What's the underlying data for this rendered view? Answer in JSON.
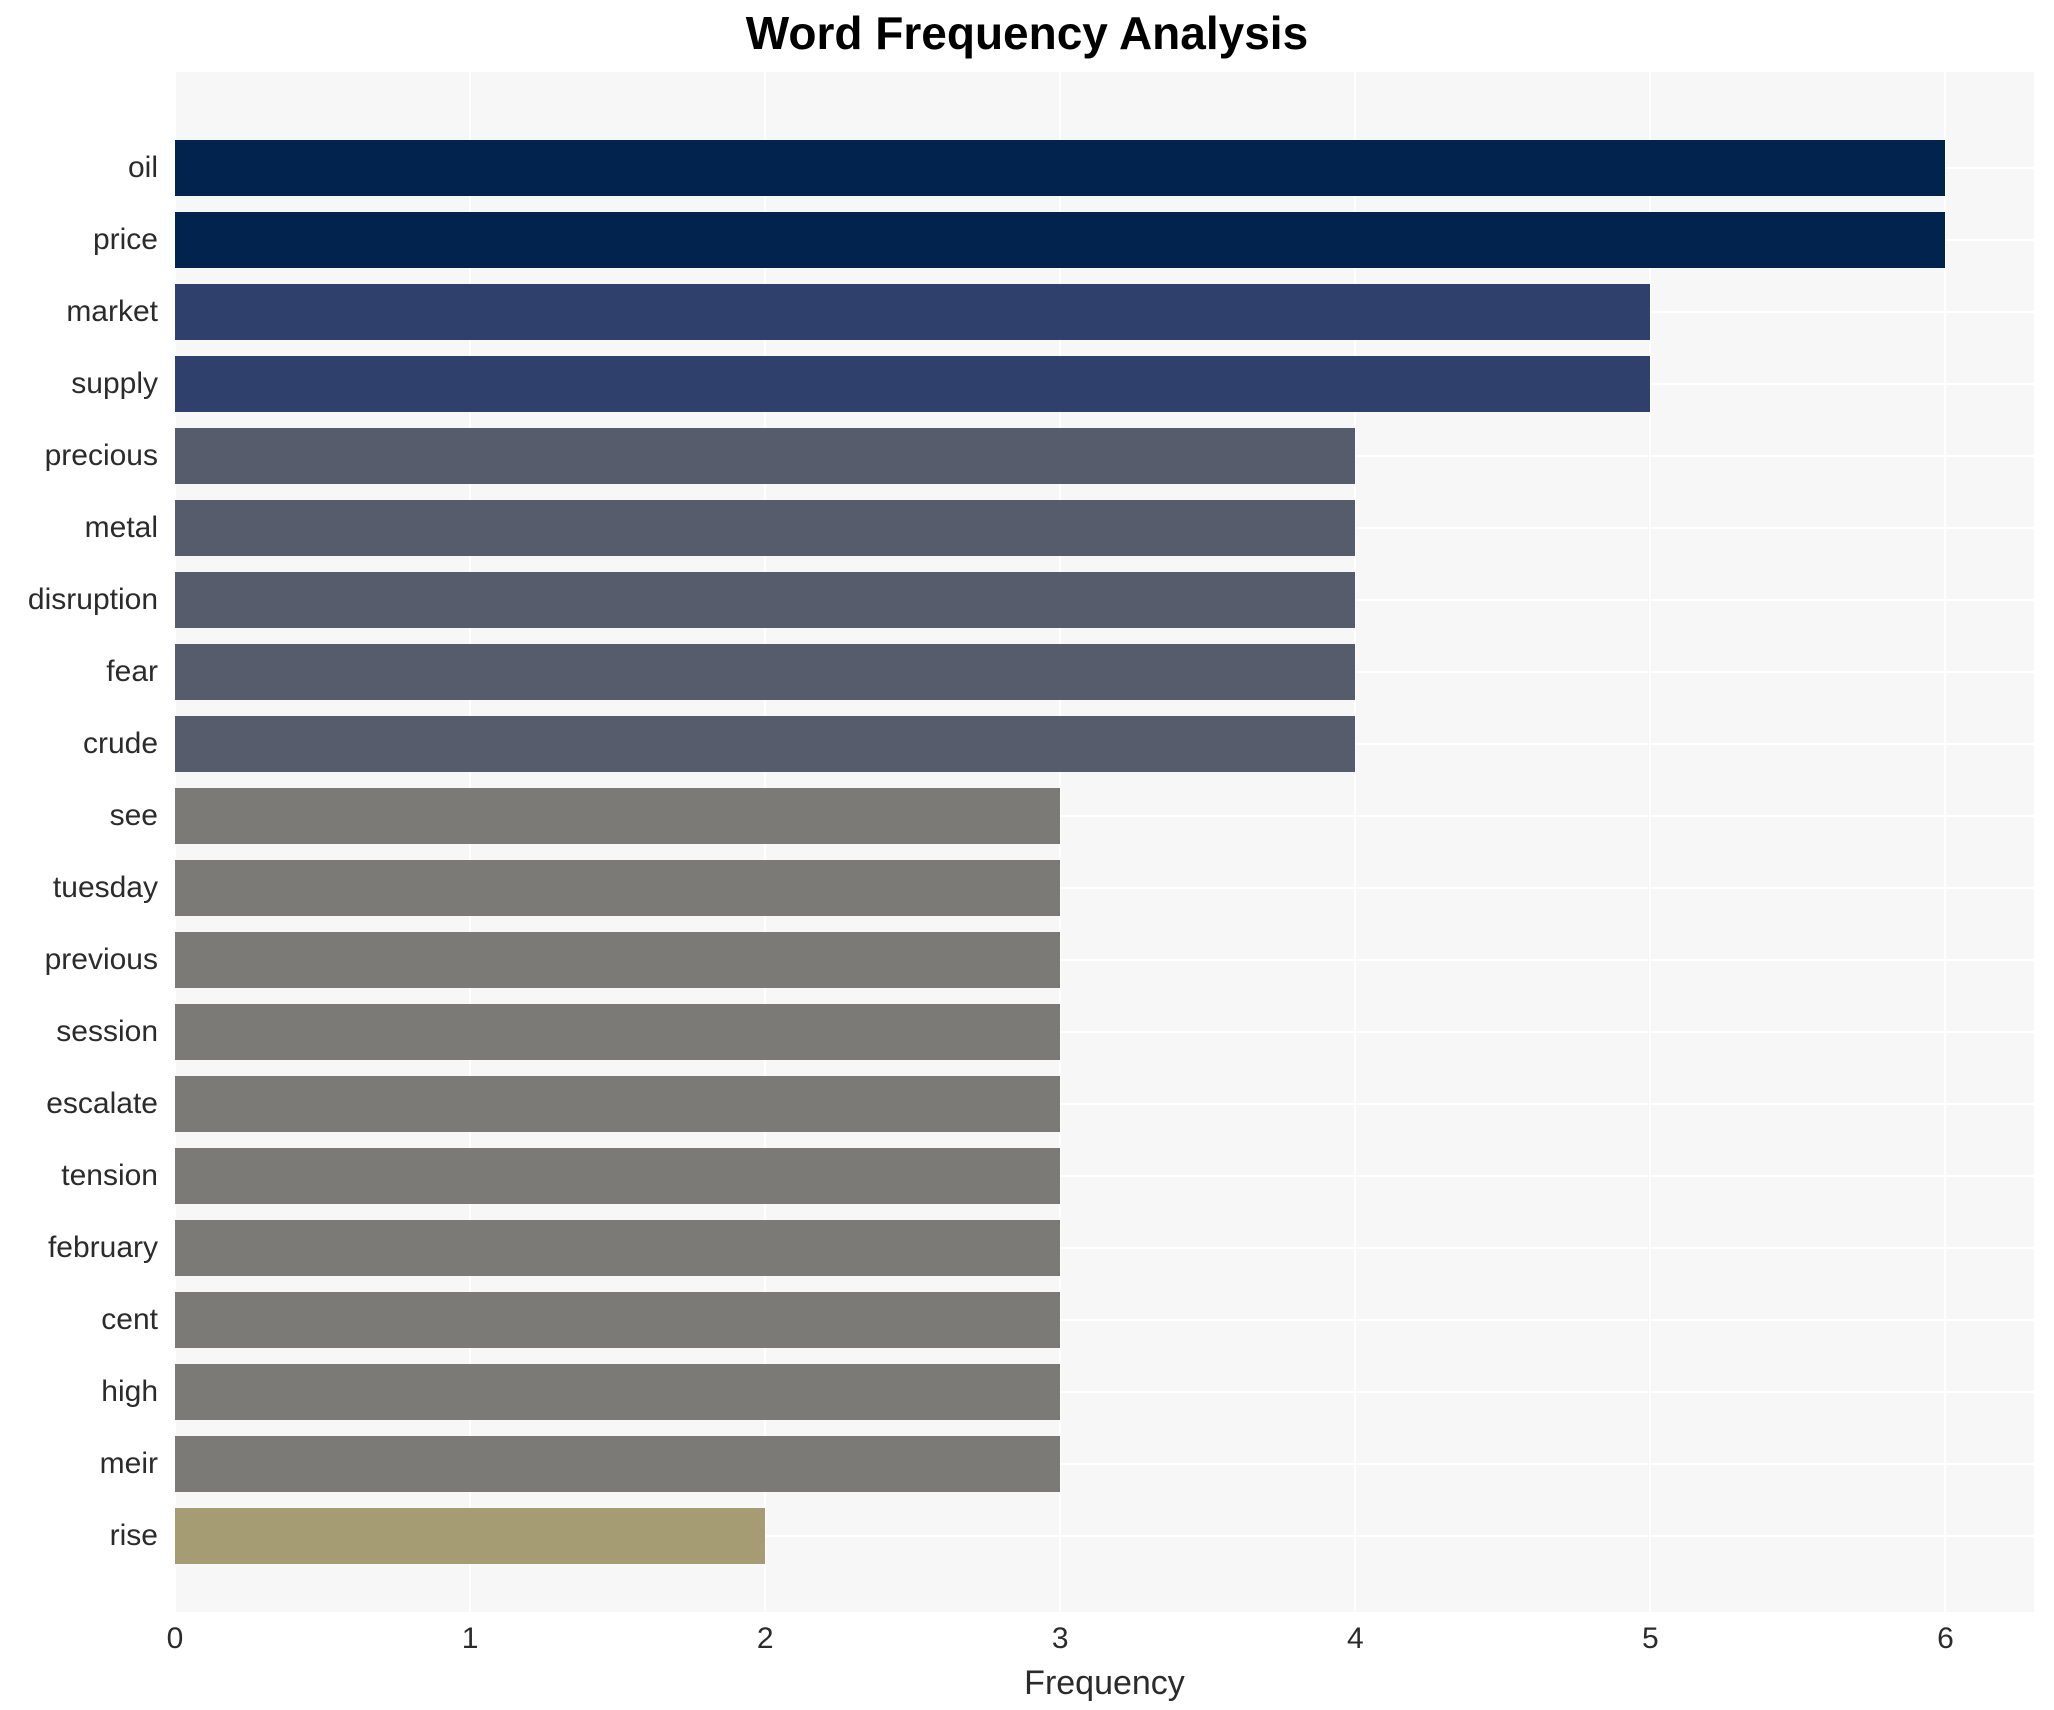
{
  "chart_data": {
    "type": "bar",
    "orientation": "horizontal",
    "title": "Word Frequency Analysis",
    "xlabel": "Frequency",
    "ylabel": "",
    "categories": [
      "oil",
      "price",
      "market",
      "supply",
      "precious",
      "metal",
      "disruption",
      "fear",
      "crude",
      "see",
      "tuesday",
      "previous",
      "session",
      "escalate",
      "tension",
      "february",
      "cent",
      "high",
      "meir",
      "rise"
    ],
    "values": [
      6,
      6,
      5,
      5,
      4,
      4,
      4,
      4,
      4,
      3,
      3,
      3,
      3,
      3,
      3,
      3,
      3,
      3,
      3,
      2
    ],
    "bar_colors": [
      "#02234d",
      "#02234d",
      "#2e406b",
      "#2e406b",
      "#575c6c",
      "#575c6c",
      "#575c6c",
      "#575c6c",
      "#575c6c",
      "#7b7a76",
      "#7b7a76",
      "#7b7a76",
      "#7b7a76",
      "#7b7a76",
      "#7b7a76",
      "#7b7a76",
      "#7b7a76",
      "#7b7a76",
      "#7b7a76",
      "#a69c73"
    ],
    "xlim": [
      0,
      6.3
    ],
    "x_ticks": [
      "0",
      "1",
      "2",
      "3",
      "4",
      "5",
      "6"
    ],
    "grid": true,
    "legend_position": "none",
    "plot_background": "#f7f7f7",
    "grid_color": "#ffffff"
  }
}
